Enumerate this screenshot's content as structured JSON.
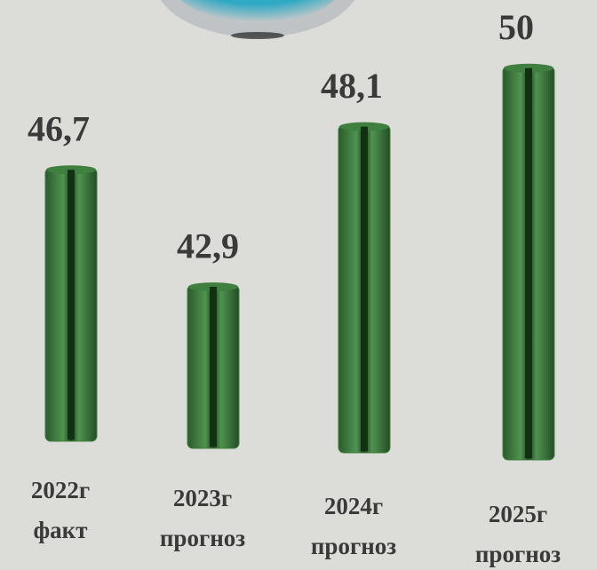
{
  "chart_data": {
    "type": "bar",
    "categories": [
      "2022г",
      "2023г",
      "2024г",
      "2025г"
    ],
    "category_notes": [
      "факт",
      "прогноз",
      "прогноз",
      "прогноз"
    ],
    "values": [
      46.7,
      42.9,
      48.1,
      50
    ],
    "value_labels": [
      "46,7",
      "42,9",
      "48,1",
      "50"
    ],
    "color": "#3f7f3f",
    "ylim": [
      37.6,
      51
    ]
  }
}
